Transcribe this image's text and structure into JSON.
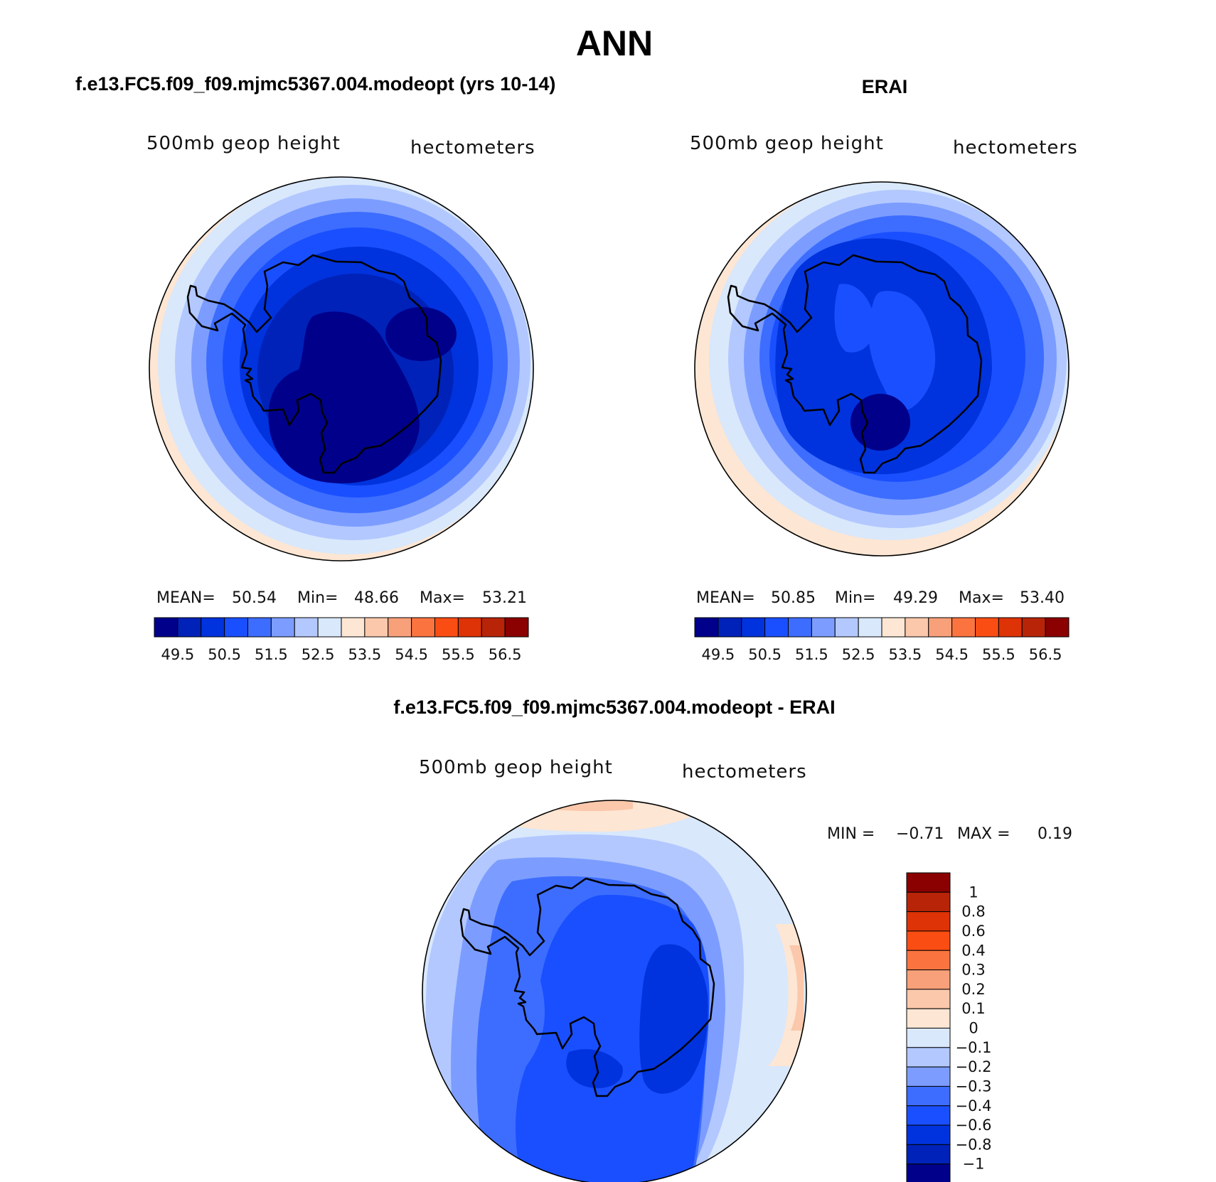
{
  "page_title": "ANN",
  "panels": [
    {
      "title": "f.e13.FC5.f09_f09.mjmc5367.004.modeopt (yrs 10-14)",
      "variable": "500mb geop height",
      "units": "hectometers",
      "stats": {
        "mean_label": "MEAN=",
        "mean": "50.54",
        "min_label": "Min=",
        "min": "48.66",
        "max_label": "Max=",
        "max": "53.21"
      }
    },
    {
      "title": "ERAI",
      "variable": "500mb geop height",
      "units": "hectometers",
      "stats": {
        "mean_label": "MEAN=",
        "mean": "50.85",
        "min_label": "Min=",
        "min": "49.29",
        "max_label": "Max=",
        "max": "53.40"
      }
    },
    {
      "title": "f.e13.FC5.f09_f09.mjmc5367.004.modeopt - ERAI",
      "variable": "500mb geop height",
      "units": "hectometers",
      "stats": {
        "min_label": "MIN =",
        "min": "−0.71",
        "max_label": "MAX =",
        "max": "0.19"
      }
    }
  ],
  "colorbar_abs": {
    "colors": [
      "#00008b",
      "#0022b8",
      "#0033dd",
      "#1a4fff",
      "#3d6dff",
      "#7c9dff",
      "#b3c8ff",
      "#d9e8fb",
      "#fde6d3",
      "#fbc8ab",
      "#f8a07a",
      "#fb7440",
      "#f94d14",
      "#dd3306",
      "#b72408",
      "#8b0000"
    ],
    "labels": [
      "49.5",
      "50.5",
      "51.5",
      "52.5",
      "53.5",
      "54.5",
      "55.5",
      "56.5"
    ]
  },
  "colorbar_diff": {
    "colors": [
      "#8b0000",
      "#b72408",
      "#dd3306",
      "#f94d14",
      "#fb7440",
      "#f8a07a",
      "#fbc8ab",
      "#fde6d3",
      "#d9e8fb",
      "#b3c8ff",
      "#7c9dff",
      "#3d6dff",
      "#1a4fff",
      "#0033dd",
      "#0022b8",
      "#00008b"
    ],
    "labels": [
      "1",
      "0.8",
      "0.6",
      "0.4",
      "0.3",
      "0.2",
      "0.1",
      "0",
      "−0.1",
      "−0.2",
      "−0.3",
      "−0.4",
      "−0.6",
      "−0.8",
      "−1"
    ]
  }
}
